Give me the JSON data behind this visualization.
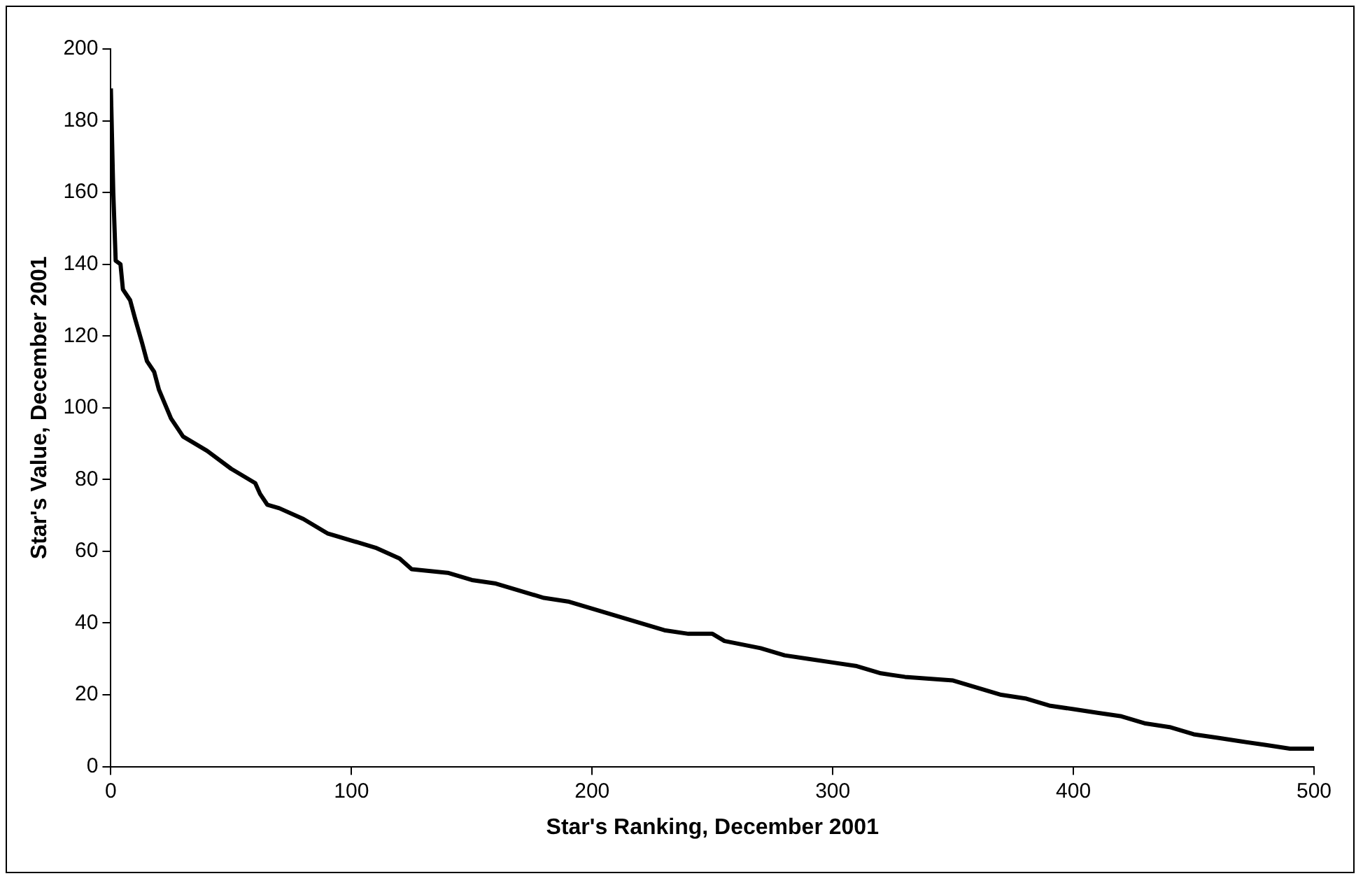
{
  "chart_data": {
    "type": "line",
    "xlabel": "Star's Ranking, December 2001",
    "ylabel": "Star's Value, December 2001",
    "x": [
      0,
      1,
      2,
      4,
      5,
      8,
      10,
      13,
      15,
      18,
      20,
      25,
      30,
      40,
      50,
      60,
      62,
      65,
      70,
      80,
      90,
      100,
      110,
      120,
      125,
      140,
      150,
      160,
      170,
      180,
      190,
      200,
      210,
      220,
      230,
      240,
      250,
      255,
      270,
      280,
      290,
      300,
      310,
      320,
      330,
      350,
      360,
      370,
      380,
      390,
      400,
      410,
      420,
      430,
      440,
      450,
      460,
      470,
      480,
      490,
      500
    ],
    "series": [
      {
        "color": "#000000",
        "values": [
          189,
          160,
          141,
          140,
          133,
          130,
          125,
          118,
          113,
          110,
          105,
          97,
          92,
          88,
          83,
          79,
          76,
          73,
          72,
          69,
          65,
          63,
          61,
          58,
          55,
          54,
          52,
          51,
          49,
          47,
          46,
          44,
          42,
          40,
          38,
          37,
          37,
          35,
          33,
          31,
          30,
          29,
          28,
          26,
          25,
          24,
          22,
          20,
          19,
          17,
          16,
          15,
          14,
          12,
          11,
          9,
          8,
          7,
          6,
          5,
          5
        ]
      }
    ],
    "xlim": [
      0,
      500
    ],
    "xticks": [
      0,
      100,
      200,
      300,
      400,
      500
    ],
    "ylim": [
      0,
      200
    ],
    "yticks": [
      0,
      20,
      40,
      60,
      80,
      100,
      120,
      140,
      160,
      180,
      200
    ],
    "grid": false,
    "legend": false,
    "marker": "none",
    "line_style": "solid"
  }
}
